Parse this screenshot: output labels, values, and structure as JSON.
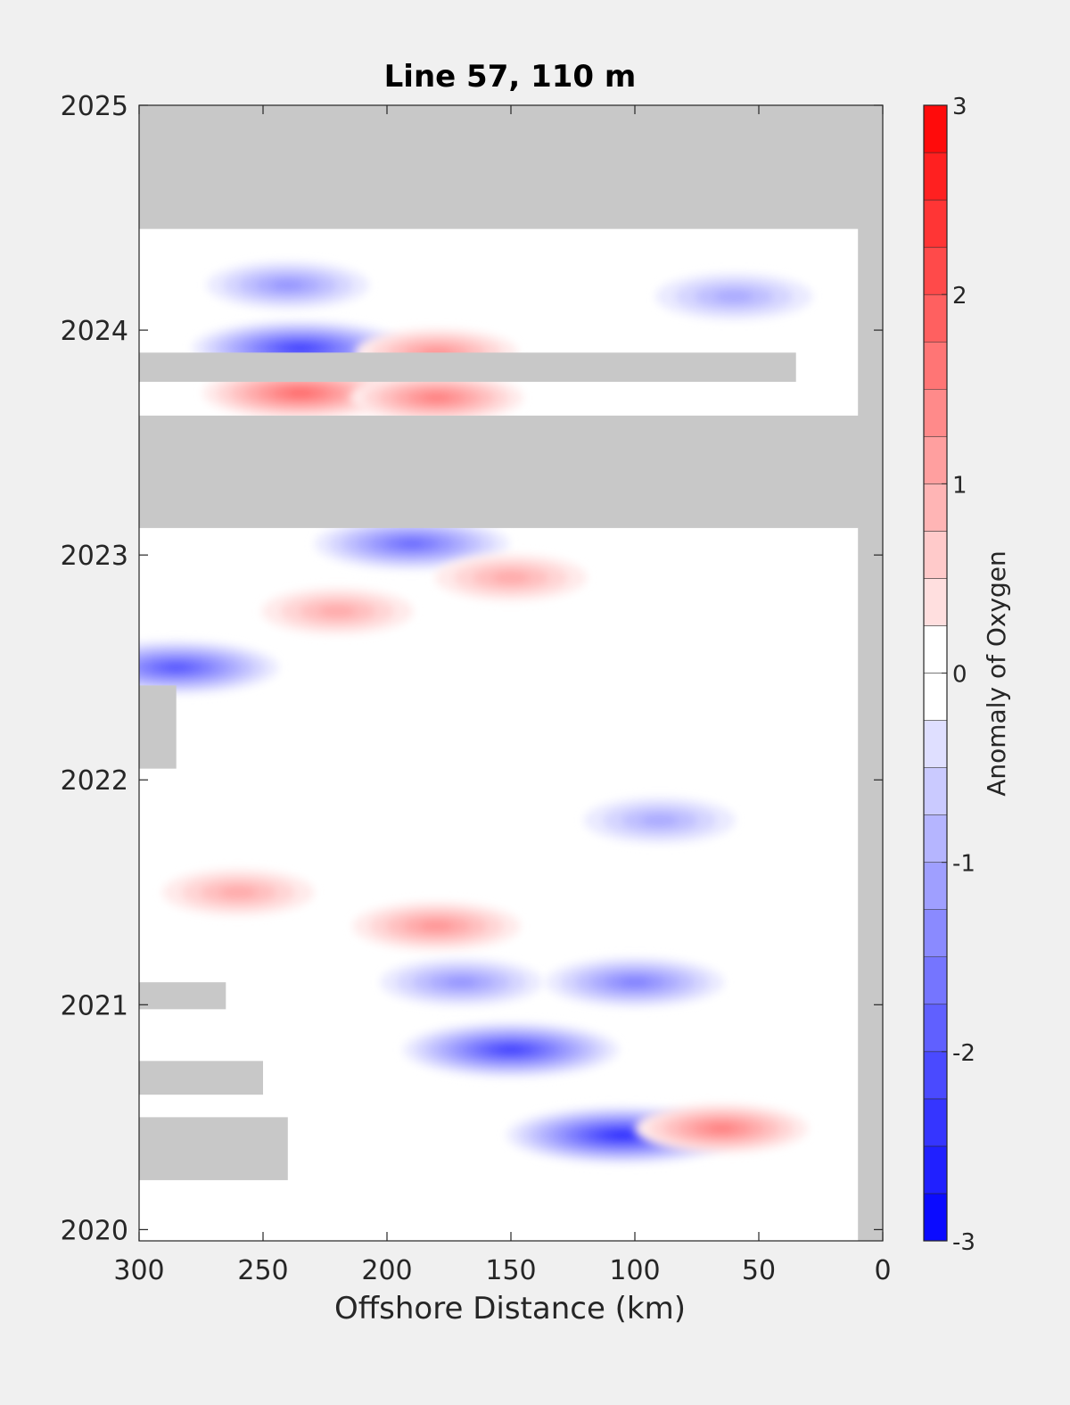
{
  "chart_data": {
    "type": "heatmap",
    "plot_style": "filled contour",
    "title": "Line 57, 110 m",
    "xlabel": "Offshore Distance (km)",
    "ylabel": "",
    "x_reversed": true,
    "xlim": [
      300,
      0
    ],
    "ylim": [
      2019.95,
      2025
    ],
    "x_ticks": [
      "300",
      "250",
      "200",
      "150",
      "100",
      "50",
      "0"
    ],
    "y_ticks": [
      "2020",
      "2021",
      "2022",
      "2023",
      "2024",
      "2025"
    ],
    "colorbar": {
      "label": "Anomaly of Oxygen",
      "range": [
        -3,
        3
      ],
      "levels_step": 0.25,
      "ticks": [
        "-3",
        "-2",
        "-1",
        "0",
        "1",
        "2",
        "3"
      ],
      "low_color": "#0000ff",
      "mid_color": "#ffffff",
      "high_color": "#ff0000"
    },
    "no_data_color": "#c8c8c8",
    "no_data_regions": [
      {
        "x": [
          300,
          0
        ],
        "y": [
          2024.45,
          2025.0
        ]
      },
      {
        "x": [
          300,
          0
        ],
        "y": [
          2023.12,
          2023.62
        ]
      },
      {
        "x": [
          300,
          35
        ],
        "y": [
          2023.77,
          2023.9
        ]
      },
      {
        "x": [
          10,
          0
        ],
        "y": [
          2019.95,
          2025.0
        ]
      },
      {
        "x": [
          300,
          240
        ],
        "y": [
          2020.22,
          2020.5
        ]
      },
      {
        "x": [
          300,
          250
        ],
        "y": [
          2020.6,
          2020.75
        ]
      },
      {
        "x": [
          300,
          265
        ],
        "y": [
          2020.98,
          2021.1
        ]
      },
      {
        "x": [
          300,
          285
        ],
        "y": [
          2022.05,
          2022.42
        ]
      }
    ],
    "anomaly_features": [
      {
        "x": 235,
        "y": 2023.92,
        "value": -2.2
      },
      {
        "x": 180,
        "y": 2023.9,
        "value": 1.2
      },
      {
        "x": 235,
        "y": 2023.72,
        "value": 1.8
      },
      {
        "x": 180,
        "y": 2023.7,
        "value": 1.4
      },
      {
        "x": 285,
        "y": 2022.5,
        "value": -2.0
      },
      {
        "x": 150,
        "y": 2020.8,
        "value": -2.2
      },
      {
        "x": 105,
        "y": 2020.42,
        "value": -2.5
      },
      {
        "x": 65,
        "y": 2020.45,
        "value": 1.4
      },
      {
        "x": 180,
        "y": 2021.35,
        "value": 1.3
      },
      {
        "x": 100,
        "y": 2021.1,
        "value": -1.5
      },
      {
        "x": 170,
        "y": 2021.1,
        "value": -1.2
      },
      {
        "x": 90,
        "y": 2021.82,
        "value": -1.0
      },
      {
        "x": 190,
        "y": 2023.05,
        "value": -1.8
      },
      {
        "x": 150,
        "y": 2022.9,
        "value": 1.0
      },
      {
        "x": 220,
        "y": 2022.75,
        "value": 1.0
      },
      {
        "x": 260,
        "y": 2021.5,
        "value": 1.0
      },
      {
        "x": 240,
        "y": 2024.2,
        "value": -1.2
      },
      {
        "x": 60,
        "y": 2024.15,
        "value": -1.1
      }
    ]
  }
}
